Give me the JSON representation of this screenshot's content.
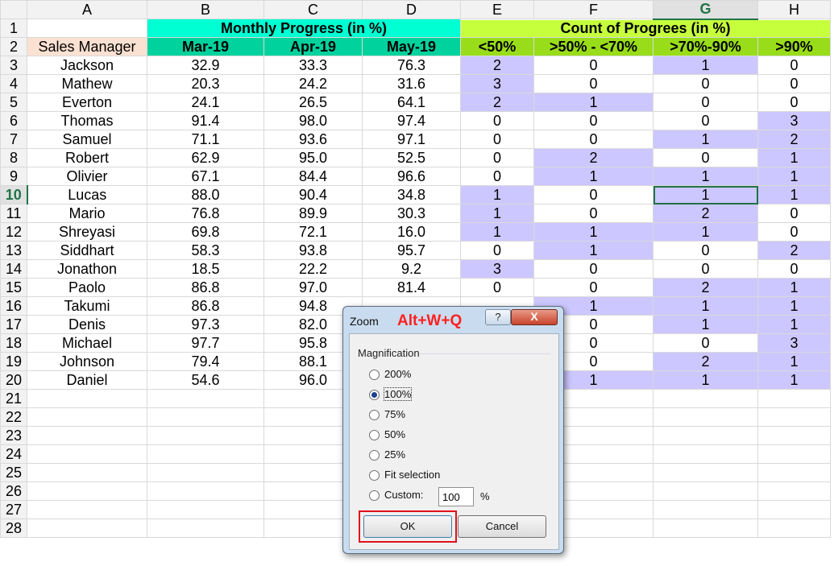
{
  "columns": [
    "A",
    "B",
    "C",
    "D",
    "E",
    "F",
    "G",
    "H"
  ],
  "selected_column": "G",
  "selected_row": 10,
  "titles": {
    "monthly": "Monthly Progress (in %)",
    "count": "Count of Progrees (in %)"
  },
  "headers": [
    "Sales Manager",
    "Mar-19",
    "Apr-19",
    "May-19",
    "<50%",
    ">50% - <70%",
    ">70%-90%",
    ">90%"
  ],
  "rows": [
    [
      "Jackson",
      "32.9",
      "33.3",
      "76.3",
      "2",
      "0",
      "1",
      "0"
    ],
    [
      "Mathew",
      "20.3",
      "24.2",
      "31.6",
      "3",
      "0",
      "0",
      "0"
    ],
    [
      "Everton",
      "24.1",
      "26.5",
      "64.1",
      "2",
      "1",
      "0",
      "0"
    ],
    [
      "Thomas",
      "91.4",
      "98.0",
      "97.4",
      "0",
      "0",
      "0",
      "3"
    ],
    [
      "Samuel",
      "71.1",
      "93.6",
      "97.1",
      "0",
      "0",
      "1",
      "2"
    ],
    [
      "Robert",
      "62.9",
      "95.0",
      "52.5",
      "0",
      "2",
      "0",
      "1"
    ],
    [
      "Olivier",
      "67.1",
      "84.4",
      "96.6",
      "0",
      "1",
      "1",
      "1"
    ],
    [
      "Lucas",
      "88.0",
      "90.4",
      "34.8",
      "1",
      "0",
      "1",
      "1"
    ],
    [
      "Mario",
      "76.8",
      "89.9",
      "30.3",
      "1",
      "0",
      "2",
      "0"
    ],
    [
      "Shreyasi",
      "69.8",
      "72.1",
      "16.0",
      "1",
      "1",
      "1",
      "0"
    ],
    [
      "Siddhart",
      "58.3",
      "93.8",
      "95.7",
      "0",
      "1",
      "0",
      "2"
    ],
    [
      "Jonathon",
      "18.5",
      "22.2",
      "9.2",
      "3",
      "0",
      "0",
      "0"
    ],
    [
      "Paolo",
      "86.8",
      "97.0",
      "81.4",
      "0",
      "0",
      "2",
      "1"
    ],
    [
      "Takumi",
      "86.8",
      "94.8",
      "",
      "",
      "1",
      "1",
      "1"
    ],
    [
      "Denis",
      "97.3",
      "82.0",
      "",
      "",
      "0",
      "1",
      "1"
    ],
    [
      "Michael",
      "97.7",
      "95.8",
      "",
      "",
      "0",
      "0",
      "3"
    ],
    [
      "Johnson",
      "79.4",
      "88.1",
      "",
      "",
      "0",
      "2",
      "1"
    ],
    [
      "Daniel",
      "54.6",
      "96.0",
      "",
      "",
      "1",
      "1",
      "1"
    ]
  ],
  "empty_rows": [
    21,
    22,
    23,
    24,
    25,
    26,
    27,
    28
  ],
  "colors": {
    "accent": "#217346",
    "count_highlight": "#cdc7ff",
    "red_hint": "#ff2020"
  },
  "dialog": {
    "title": "Zoom",
    "hint": "Alt+W+Q",
    "help": "?",
    "close": "X",
    "group_label": "Magnification",
    "options": [
      "200%",
      "100%",
      "75%",
      "50%",
      "25%",
      "Fit selection",
      "Custom:"
    ],
    "selected_option": "100%",
    "custom_value": "100",
    "percent_sign": "%",
    "ok_label": "OK",
    "cancel_label": "Cancel"
  }
}
